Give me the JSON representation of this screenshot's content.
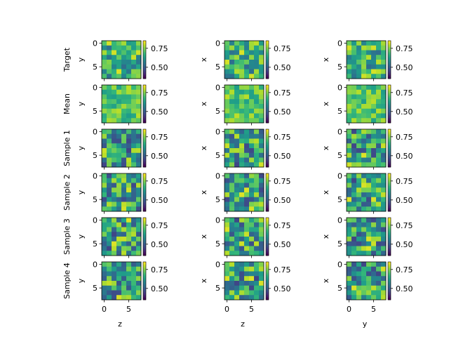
{
  "chart_data": {
    "type": "heatmap",
    "grid_rows": 6,
    "grid_cols": 3,
    "matrix_size": 8,
    "colormap": "viridis",
    "value_range": [
      0.35,
      0.85
    ],
    "axis_ticks": [
      "0",
      "5"
    ],
    "row_labels": [
      "Target",
      "Mean",
      "Sample 1",
      "Sample 2",
      "Sample 3",
      "Sample 4"
    ],
    "panel_ylabels": [
      "y",
      "x",
      "x"
    ],
    "panel_xlabels": [
      "z",
      "z",
      "y"
    ],
    "colorbar_ticks": [
      "0.75",
      "0.50"
    ],
    "colorbar_tick_values": [
      0.75,
      0.5
    ]
  }
}
